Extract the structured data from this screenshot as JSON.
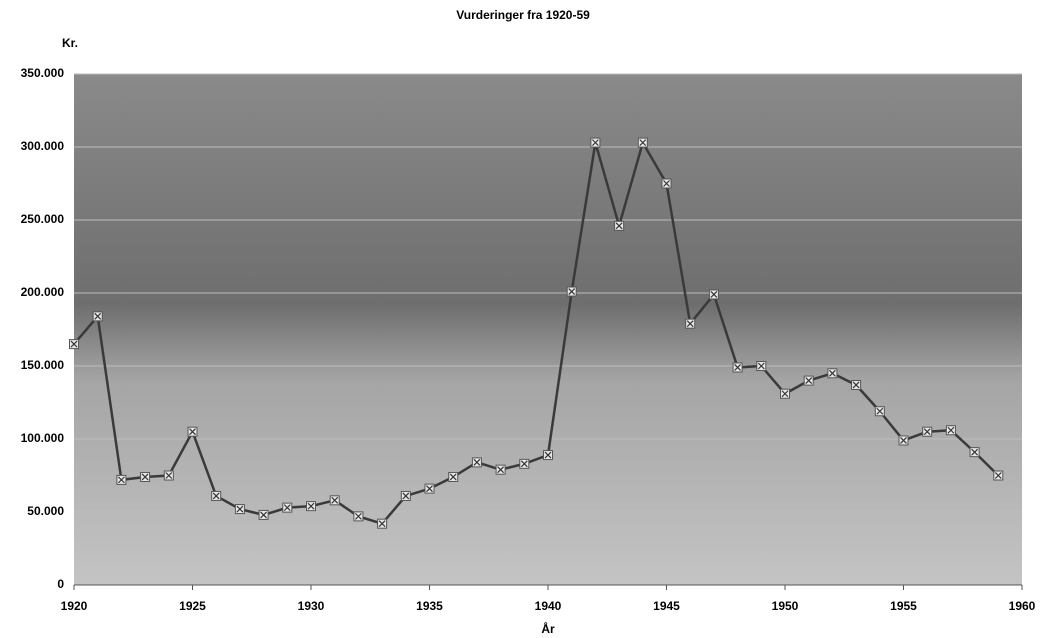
{
  "chart_data": {
    "type": "line",
    "title": "Vurderinger fra 1920-59",
    "y_label": "Kr.",
    "x_label": "År",
    "x": [
      1920,
      1921,
      1922,
      1923,
      1924,
      1925,
      1926,
      1927,
      1928,
      1929,
      1930,
      1931,
      1932,
      1933,
      1934,
      1935,
      1936,
      1937,
      1938,
      1939,
      1940,
      1941,
      1942,
      1943,
      1944,
      1945,
      1946,
      1947,
      1948,
      1949,
      1950,
      1951,
      1952,
      1953,
      1954,
      1955,
      1956,
      1957,
      1958,
      1959
    ],
    "values": [
      165000,
      184000,
      72000,
      74000,
      75000,
      105000,
      61000,
      52000,
      48000,
      53000,
      54000,
      58000,
      47000,
      42000,
      61000,
      66000,
      74000,
      84000,
      79000,
      83000,
      89000,
      201000,
      303000,
      246000,
      303000,
      275000,
      179000,
      199000,
      149000,
      150000,
      131000,
      140000,
      145000,
      137000,
      119000,
      99000,
      105000,
      106000,
      91000,
      75000
    ],
    "color": "#3a3a3a",
    "xlim": [
      1920,
      1960
    ],
    "xticks": [
      1920,
      1925,
      1930,
      1935,
      1940,
      1945,
      1950,
      1955,
      1960
    ],
    "ylim": [
      0,
      350000
    ],
    "yticks": [
      0,
      {
        "value": 50000,
        "label": "50.000"
      },
      {
        "value": 100000,
        "label": "100.000"
      },
      {
        "value": 150000,
        "label": "150.000"
      },
      {
        "value": 200000,
        "label": "200.000"
      },
      {
        "value": 250000,
        "label": "250.000"
      },
      {
        "value": 300000,
        "label": "300.000"
      },
      {
        "value": 350000,
        "label": "350.000"
      }
    ],
    "grid": true
  }
}
